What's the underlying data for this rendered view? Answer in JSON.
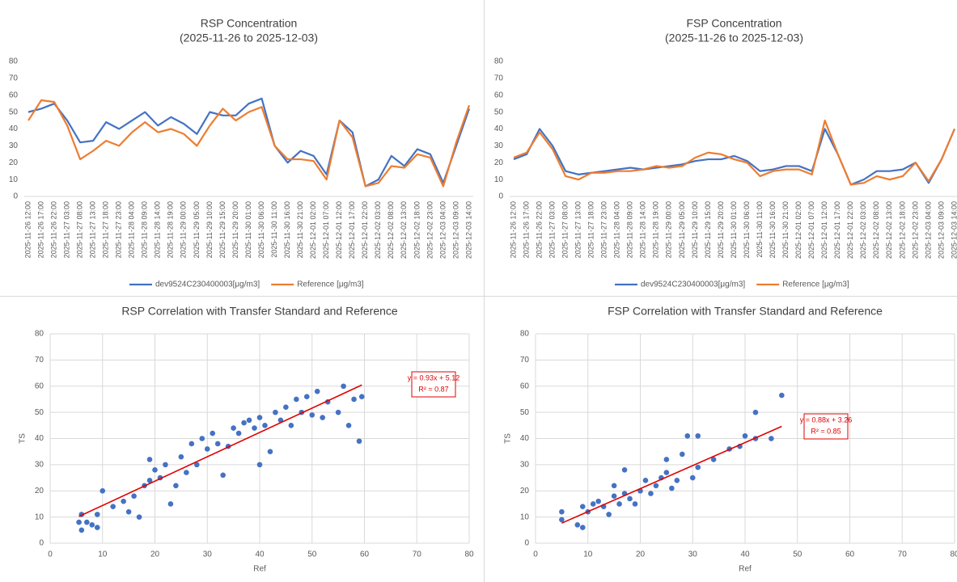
{
  "chart_data": [
    {
      "type": "line",
      "title": "RSP Concentration",
      "subtitle": "(2025-11-26 to 2025-12-03)",
      "categories": [
        "2025-11-26 12:00",
        "2025-11-26 17:00",
        "2025-11-26 22:00",
        "2025-11-27 03:00",
        "2025-11-27 08:00",
        "2025-11-27 13:00",
        "2025-11-27 18:00",
        "2025-11-27 23:00",
        "2025-11-28 04:00",
        "2025-11-28 09:00",
        "2025-11-28 14:00",
        "2025-11-28 19:00",
        "2025-11-29 00:00",
        "2025-11-29 05:00",
        "2025-11-29 10:00",
        "2025-11-29 15:00",
        "2025-11-29 20:00",
        "2025-11-30 01:00",
        "2025-11-30 06:00",
        "2025-11-30 11:00",
        "2025-11-30 16:00",
        "2025-11-30 21:00",
        "2025-12-01 02:00",
        "2025-12-01 07:00",
        "2025-12-01 12:00",
        "2025-12-01 17:00",
        "2025-12-01 22:00",
        "2025-12-02 03:00",
        "2025-12-02 08:00",
        "2025-12-02 13:00",
        "2025-12-02 18:00",
        "2025-12-02 23:00",
        "2025-12-03 04:00",
        "2025-12-03 09:00",
        "2025-12-03 14:00"
      ],
      "series": [
        {
          "name": "dev9524C230400003[μg/m3]",
          "color": "#4472c4",
          "values": [
            50,
            52,
            55,
            45,
            32,
            33,
            44,
            40,
            45,
            50,
            42,
            47,
            43,
            37,
            50,
            48,
            48,
            55,
            58,
            30,
            20,
            27,
            24,
            13,
            45,
            38,
            6,
            10,
            24,
            18,
            28,
            25,
            8,
            30,
            52
          ]
        },
        {
          "name": "Reference [μg/m3]",
          "color": "#ed7d31",
          "values": [
            45,
            57,
            56,
            42,
            22,
            27,
            33,
            30,
            38,
            44,
            38,
            40,
            37,
            30,
            42,
            52,
            45,
            50,
            53,
            30,
            22,
            22,
            21,
            10,
            45,
            35,
            6,
            8,
            18,
            17,
            25,
            23,
            6,
            32,
            54
          ]
        }
      ],
      "ylim": [
        0,
        80
      ],
      "yticks": [
        0,
        10,
        20,
        30,
        40,
        50,
        60,
        70,
        80
      ],
      "grid": false,
      "legend": "bottom"
    },
    {
      "type": "line",
      "title": "FSP Concentration",
      "subtitle": "(2025-11-26 to 2025-12-03)",
      "categories": [
        "2025-11-26 12:00",
        "2025-11-26 17:00",
        "2025-11-26 22:00",
        "2025-11-27 03:00",
        "2025-11-27 08:00",
        "2025-11-27 13:00",
        "2025-11-27 18:00",
        "2025-11-27 23:00",
        "2025-11-28 04:00",
        "2025-11-28 09:00",
        "2025-11-28 14:00",
        "2025-11-28 19:00",
        "2025-11-29 00:00",
        "2025-11-29 05:00",
        "2025-11-29 10:00",
        "2025-11-29 15:00",
        "2025-11-29 20:00",
        "2025-11-30 01:00",
        "2025-11-30 06:00",
        "2025-11-30 11:00",
        "2025-11-30 16:00",
        "2025-11-30 21:00",
        "2025-12-01 02:00",
        "2025-12-01 07:00",
        "2025-12-01 12:00",
        "2025-12-01 17:00",
        "2025-12-01 22:00",
        "2025-12-02 03:00",
        "2025-12-02 08:00",
        "2025-12-02 13:00",
        "2025-12-02 18:00",
        "2025-12-02 23:00",
        "2025-12-03 04:00",
        "2025-12-03 09:00",
        "2025-12-03 14:00"
      ],
      "series": [
        {
          "name": "dev9524C230400003[μg/m3]",
          "color": "#4472c4",
          "values": [
            22,
            25,
            40,
            30,
            15,
            13,
            14,
            15,
            16,
            17,
            16,
            17,
            18,
            19,
            21,
            22,
            22,
            24,
            21,
            15,
            16,
            18,
            18,
            15,
            40,
            25,
            7,
            10,
            15,
            15,
            16,
            20,
            8,
            22,
            40
          ]
        },
        {
          "name": "Reference [μg/m3]",
          "color": "#ed7d31",
          "values": [
            23,
            26,
            38,
            28,
            12,
            10,
            14,
            14,
            15,
            15,
            16,
            18,
            17,
            18,
            23,
            26,
            25,
            22,
            20,
            12,
            15,
            16,
            16,
            13,
            45,
            25,
            7,
            8,
            12,
            10,
            12,
            20,
            9,
            22,
            40
          ]
        }
      ],
      "ylim": [
        0,
        80
      ],
      "yticks": [
        0,
        10,
        20,
        30,
        40,
        50,
        60,
        70,
        80
      ],
      "grid": false,
      "legend": "bottom"
    },
    {
      "type": "scatter",
      "title": "RSP Correlation with Transfer Standard and Reference",
      "x_label": "Ref",
      "y_label": "TS",
      "color": "#4472c4",
      "x": [
        5.5,
        6,
        6,
        7,
        8,
        9,
        9,
        10,
        12,
        14,
        15,
        16,
        17,
        18,
        19,
        19,
        20,
        21,
        22,
        23,
        24,
        25,
        26,
        27,
        28,
        29,
        30,
        31,
        32,
        33,
        34,
        35,
        36,
        37,
        38,
        39,
        40,
        40,
        41,
        42,
        43,
        44,
        45,
        46,
        47,
        48,
        49,
        50,
        51,
        52,
        53,
        55,
        56,
        57,
        58,
        59,
        59.5
      ],
      "values": [
        8,
        11,
        5,
        8,
        7,
        6,
        11,
        20,
        14,
        16,
        12,
        18,
        10,
        22,
        32,
        24,
        28,
        25,
        30,
        15,
        22,
        33,
        27,
        38,
        30,
        40,
        36,
        42,
        38,
        26,
        37,
        44,
        42,
        46,
        47,
        44,
        48,
        30,
        45,
        35,
        50,
        47,
        52,
        45,
        55,
        50,
        56,
        49,
        58,
        48,
        54,
        50,
        60,
        45,
        55,
        39,
        56
      ],
      "trendline": {
        "slope": 0.93,
        "intercept": 5.12,
        "x_range": [
          5.5,
          59.5
        ],
        "color": "#e00000",
        "label": "y = 0.93x + 5.12",
        "r2_label": "R² = 0.87"
      },
      "xlim": [
        0,
        80
      ],
      "xticks": [
        0,
        10,
        20,
        30,
        40,
        50,
        60,
        70,
        80
      ],
      "ylim": [
        0,
        80
      ],
      "yticks": [
        0,
        10,
        20,
        30,
        40,
        50,
        60,
        70,
        80
      ],
      "grid": true
    },
    {
      "type": "scatter",
      "title": "FSP Correlation with Transfer Standard and Reference",
      "x_label": "Ref",
      "y_label": "TS",
      "color": "#4472c4",
      "x": [
        5,
        5,
        8,
        9,
        9,
        10,
        11,
        12,
        13,
        14,
        15,
        15,
        16,
        17,
        17,
        18,
        19,
        20,
        21,
        22,
        23,
        24,
        25,
        25,
        26,
        27,
        28,
        29,
        30,
        31,
        31,
        34,
        37,
        39,
        40,
        42,
        42,
        45,
        47
      ],
      "values": [
        9,
        12,
        7,
        6,
        14,
        12,
        15,
        16,
        14,
        11,
        18,
        22,
        15,
        28,
        19,
        17,
        15,
        20,
        24,
        19,
        22,
        25,
        27,
        32,
        21,
        24,
        34,
        41,
        25,
        29,
        41,
        32,
        36,
        37,
        41,
        40,
        50,
        40,
        56.5
      ],
      "trendline": {
        "slope": 0.88,
        "intercept": 3.26,
        "x_range": [
          5,
          47
        ],
        "color": "#e00000",
        "label": "y = 0.88x + 3.26",
        "r2_label": "R² = 0.85"
      },
      "xlim": [
        0,
        80
      ],
      "xticks": [
        0,
        10,
        20,
        30,
        40,
        50,
        60,
        70,
        80
      ],
      "ylim": [
        0,
        80
      ],
      "yticks": [
        0,
        10,
        20,
        30,
        40,
        50,
        60,
        70,
        80
      ],
      "grid": true
    }
  ]
}
